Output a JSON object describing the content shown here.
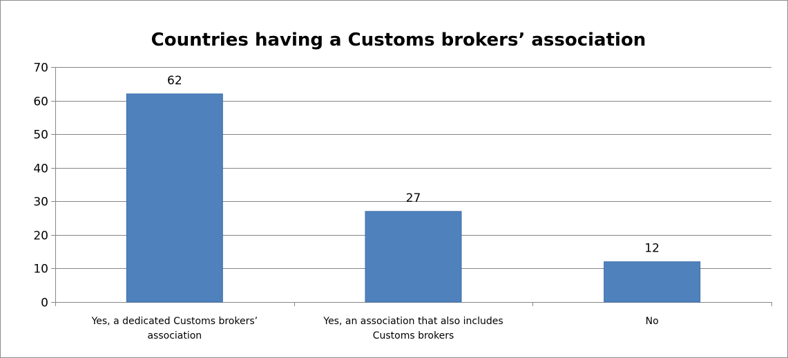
{
  "chart_data": {
    "type": "bar",
    "title": "Countries having a Customs brokers’ association",
    "categories": [
      [
        "Yes, a dedicated Customs brokers’",
        "association"
      ],
      [
        "Yes, an association that also includes",
        "Customs brokers"
      ],
      [
        "No"
      ]
    ],
    "values": [
      62,
      27,
      12
    ],
    "data_labels": [
      "62",
      "27",
      "12"
    ],
    "ylim": [
      0,
      70
    ],
    "yticks": [
      0,
      10,
      20,
      30,
      40,
      50,
      60,
      70
    ],
    "grid": true,
    "legend": "none",
    "bar_color": "#4f81bd",
    "bar_edge_color": "#3c6fa8",
    "grid_color": "#868686",
    "xlabel": "",
    "ylabel": ""
  }
}
